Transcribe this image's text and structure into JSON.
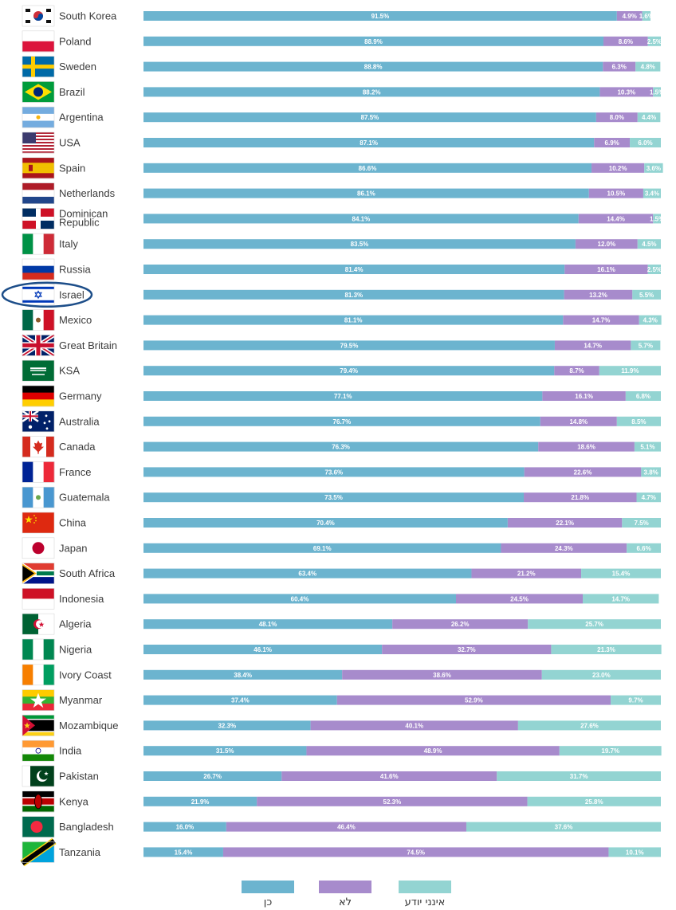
{
  "colors": {
    "yes": "#6cb4cf",
    "no": "#a78bcc",
    "dont_know": "#93d4d2",
    "highlight": "#1d4e89"
  },
  "highlighted_country": "Israel",
  "legend": [
    {
      "key": "yes",
      "label": "כן"
    },
    {
      "key": "no",
      "label": "לא"
    },
    {
      "key": "dont_know",
      "label": "אינני יודע"
    }
  ],
  "chart_data": {
    "type": "bar",
    "orientation": "horizontal",
    "stacked": true,
    "unit": "%",
    "categories": [
      "South Korea",
      "Poland",
      "Sweden",
      "Brazil",
      "Argentina",
      "USA",
      "Spain",
      "Netherlands",
      "Dominican Republic",
      "Italy",
      "Russia",
      "Israel",
      "Mexico",
      "Great Britain",
      "KSA",
      "Germany",
      "Australia",
      "Canada",
      "France",
      "Guatemala",
      "China",
      "Japan",
      "South Africa",
      "Indonesia",
      "Algeria",
      "Nigeria",
      "Ivory Coast",
      "Myanmar",
      "Mozambique",
      "India",
      "Pakistan",
      "Kenya",
      "Bangladesh",
      "Tanzania"
    ],
    "series": [
      {
        "name": "כן",
        "values": [
          91.5,
          88.9,
          88.8,
          88.2,
          87.5,
          87.1,
          86.6,
          86.1,
          84.1,
          83.5,
          81.4,
          81.3,
          81.1,
          79.5,
          79.4,
          77.1,
          76.7,
          76.3,
          73.6,
          73.5,
          70.4,
          69.1,
          63.4,
          60.4,
          48.1,
          46.1,
          38.4,
          37.4,
          32.3,
          31.5,
          26.7,
          21.9,
          16.0,
          15.4
        ]
      },
      {
        "name": "לא",
        "values": [
          4.9,
          8.6,
          6.3,
          10.3,
          8.0,
          6.9,
          10.2,
          10.5,
          14.4,
          12.0,
          16.1,
          13.2,
          14.7,
          14.7,
          8.7,
          16.1,
          14.8,
          18.6,
          22.6,
          21.8,
          22.1,
          24.3,
          21.2,
          24.5,
          26.2,
          32.7,
          38.6,
          52.9,
          40.1,
          48.9,
          41.6,
          52.3,
          46.4,
          74.5
        ]
      },
      {
        "name": "אינני יודע",
        "values": [
          1.6,
          2.5,
          4.8,
          1.5,
          4.4,
          6.0,
          3.6,
          3.4,
          1.5,
          4.5,
          2.5,
          5.5,
          4.3,
          5.7,
          11.9,
          6.8,
          8.5,
          5.1,
          3.8,
          4.7,
          7.5,
          6.6,
          15.4,
          14.7,
          25.7,
          21.3,
          23.0,
          9.7,
          27.6,
          19.7,
          31.7,
          25.8,
          37.6,
          10.1
        ]
      }
    ],
    "value_labels": [
      [
        "91.5%",
        "4.9%",
        "1.6%"
      ],
      [
        "88.9%",
        "8.6%",
        "2.5%"
      ],
      [
        "88.8%",
        "6.3%",
        "4.8%"
      ],
      [
        "88.2%",
        "10.3%",
        "1.5%"
      ],
      [
        "87.5%",
        "8.0%",
        "4.4%"
      ],
      [
        "87.1%",
        "6.9%",
        "6.0%"
      ],
      [
        "86.6%",
        "10.2%",
        "3.6%"
      ],
      [
        "86.1%",
        "10.5%",
        "3.4%"
      ],
      [
        "84.1%",
        "14.4%",
        "1.5%"
      ],
      [
        "83.5%",
        "12.0%",
        "4.5%"
      ],
      [
        "81.4%",
        "16.1%",
        "2.5%"
      ],
      [
        "81.3%",
        "13.2%",
        "5.5%"
      ],
      [
        "81.1%",
        "14.7%",
        "4.3%"
      ],
      [
        "79.5%",
        "14.7%",
        "5.7%"
      ],
      [
        "79.4%",
        "8.7%",
        "11.9%"
      ],
      [
        "77.1%",
        "16.1%",
        "6.8%"
      ],
      [
        "76.7%",
        "14.8%",
        "8.5%"
      ],
      [
        "76.3%",
        "18.6%",
        "5.1%"
      ],
      [
        "73.6%",
        "22.6%",
        "3.8%"
      ],
      [
        "73.5%",
        "21.8%",
        "4.7%"
      ],
      [
        "70.4%",
        "22.1%",
        "7.5%"
      ],
      [
        "69.1%",
        "24.3%",
        "6.6%"
      ],
      [
        "63.4%",
        "21.2%",
        "15.4%"
      ],
      [
        "60.4%",
        "24.5%",
        "14.7%"
      ],
      [
        "48.1%",
        "26.2%",
        "25.7%"
      ],
      [
        "46.1%",
        "32.7%",
        "21.3%"
      ],
      [
        "38.4%",
        "38.6%",
        "23.0%"
      ],
      [
        "37.4%",
        "52.9%",
        "9.7%"
      ],
      [
        "32.3%",
        "40.1%",
        "27.6%"
      ],
      [
        "31.5%",
        "48.9%",
        "19.7%"
      ],
      [
        "26.7%",
        "41.6%",
        "31.7%"
      ],
      [
        "21.9%",
        "52.3%",
        "25.8%"
      ],
      [
        "16.0%",
        "46.4%",
        "37.6%"
      ],
      [
        "15.4%",
        "74.5%",
        "10.1%"
      ]
    ],
    "flags": [
      "flag-south-korea",
      "flag-poland",
      "flag-sweden",
      "flag-brazil",
      "flag-argentina",
      "flag-usa",
      "flag-spain",
      "flag-netherlands",
      "flag-dominican-republic",
      "flag-italy",
      "flag-russia",
      "flag-israel",
      "flag-mexico",
      "flag-great-britain",
      "flag-ksa",
      "flag-germany",
      "flag-australia",
      "flag-canada",
      "flag-france",
      "flag-guatemala",
      "flag-china",
      "flag-japan",
      "flag-south-africa",
      "flag-indonesia",
      "flag-algeria",
      "flag-nigeria",
      "flag-ivory-coast",
      "flag-myanmar",
      "flag-mozambique",
      "flag-india",
      "flag-pakistan",
      "flag-kenya",
      "flag-bangladesh",
      "flag-tanzania"
    ],
    "legend_position": "bottom",
    "xlim": [
      0,
      100
    ],
    "grid": false
  }
}
